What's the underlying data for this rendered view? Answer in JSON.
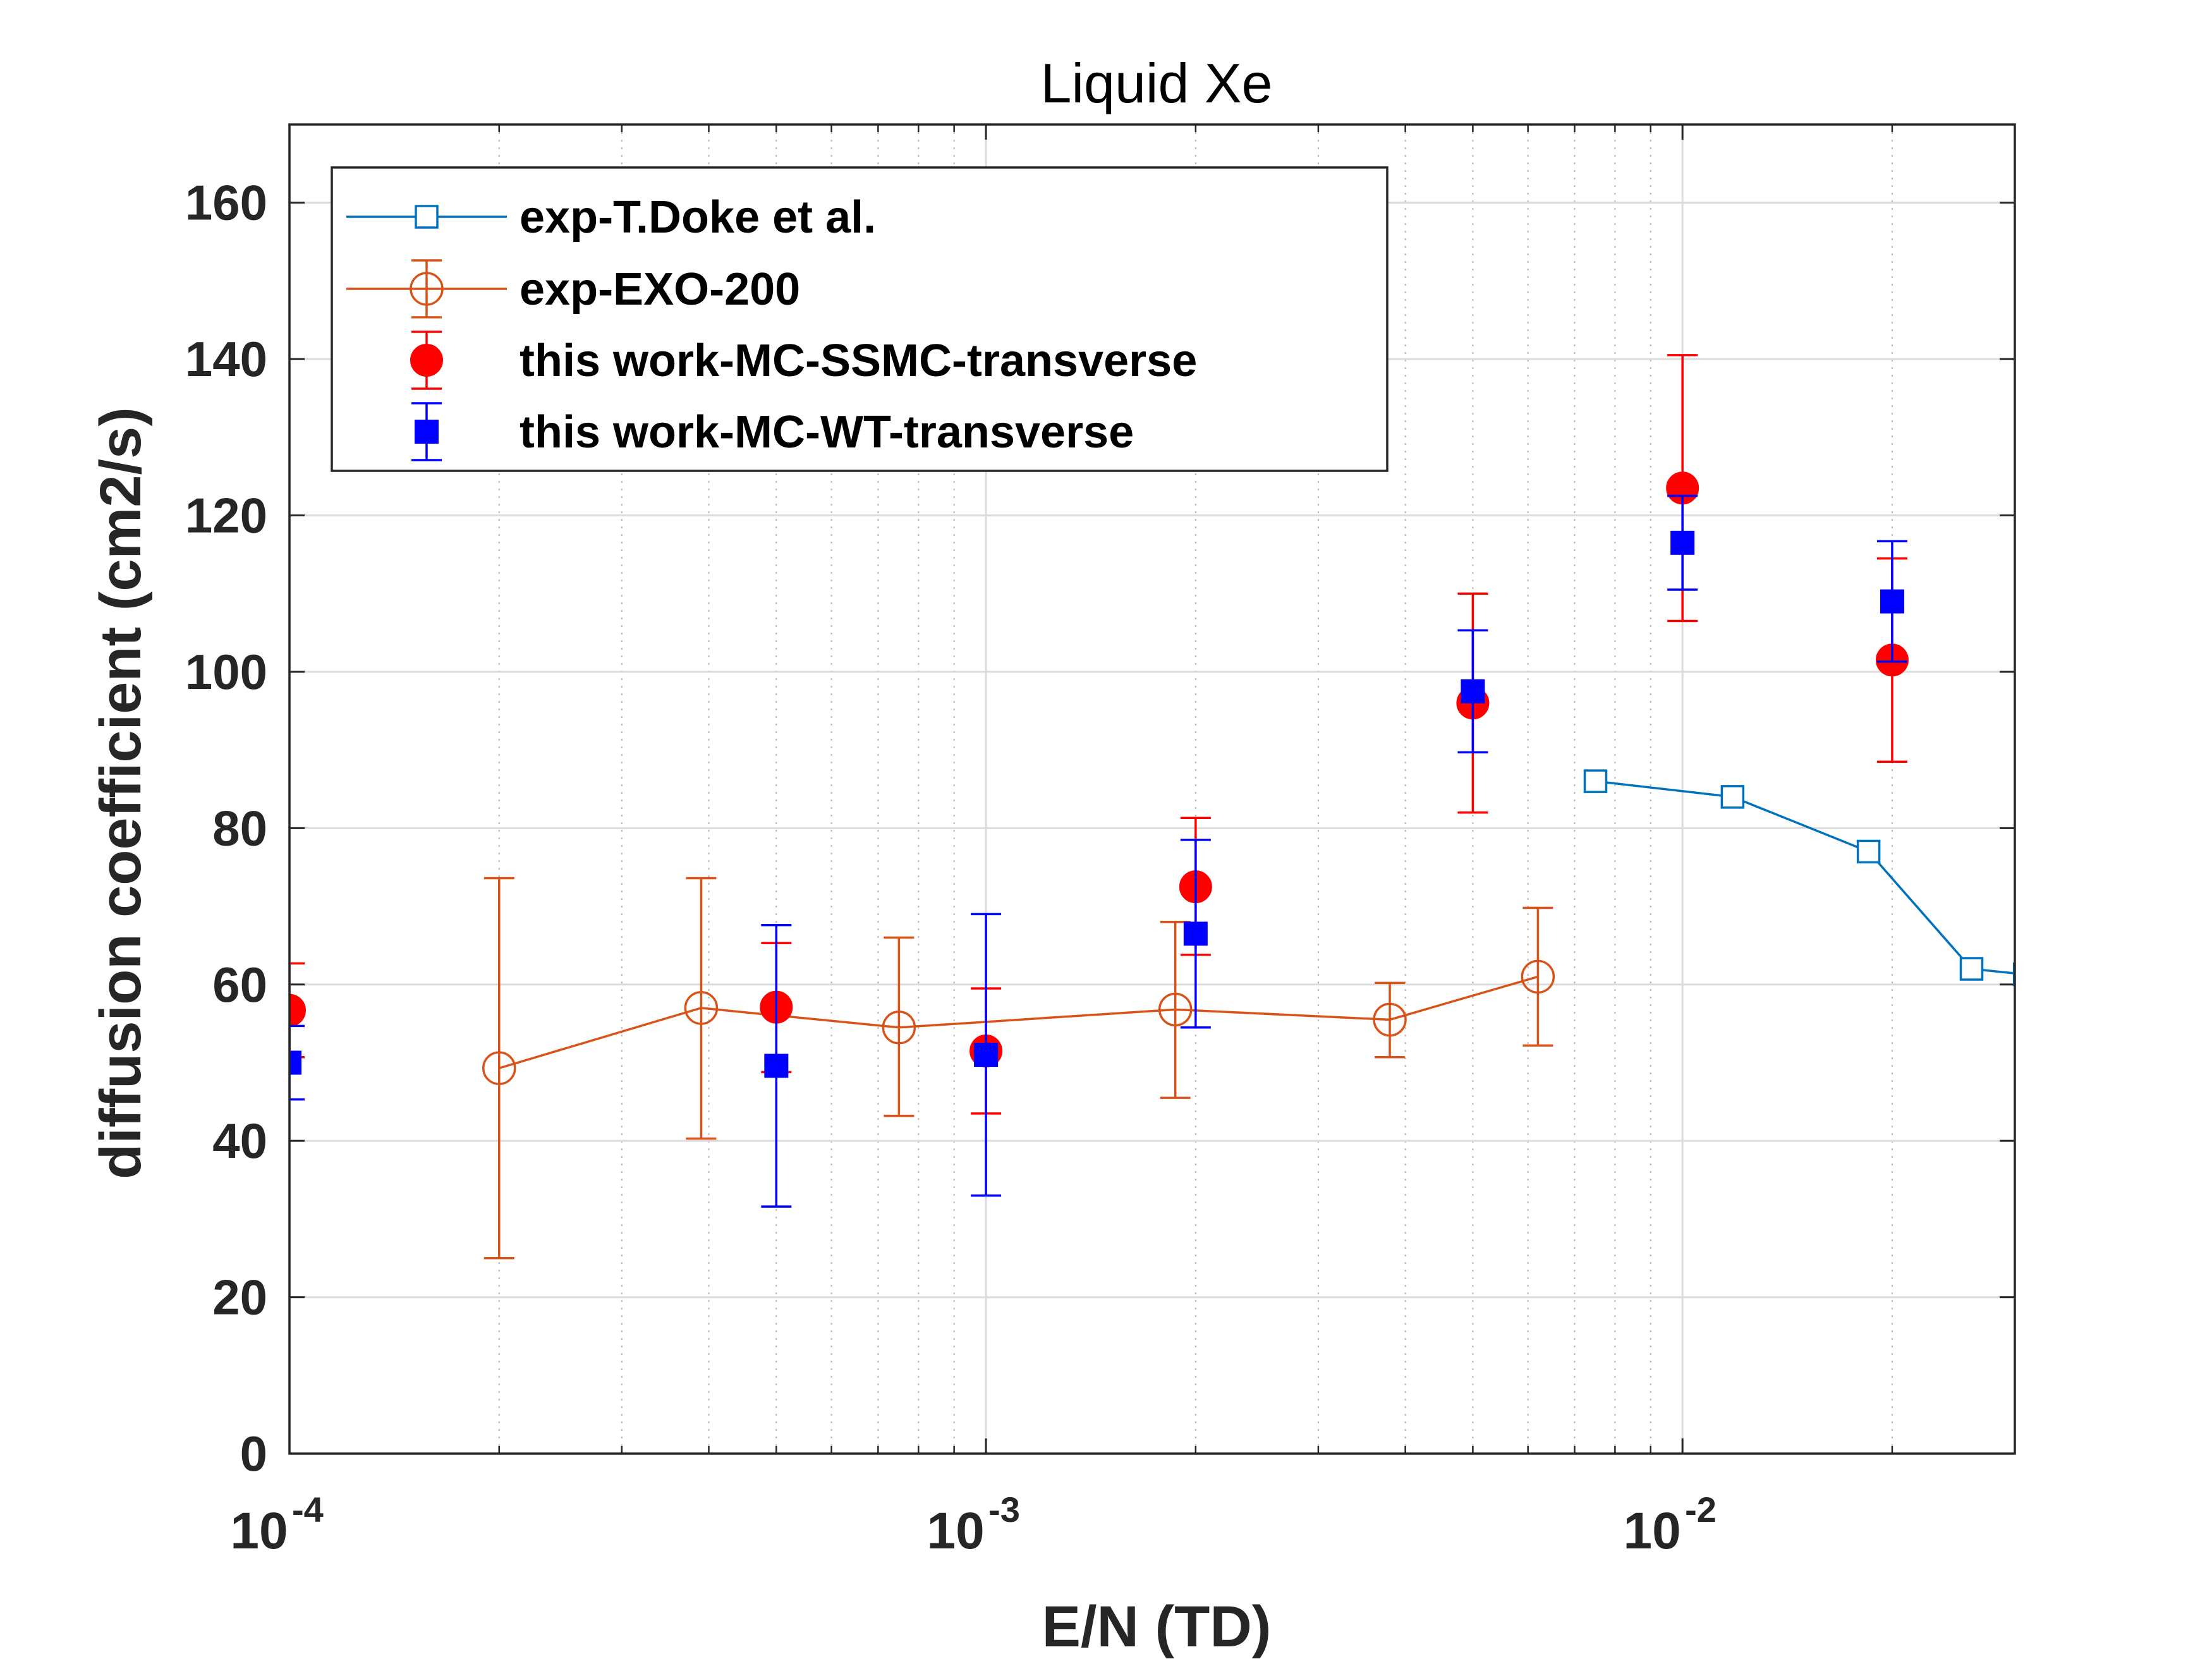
{
  "chart_data": {
    "type": "scatter",
    "title": "Liquid Xe",
    "xlabel": "E/N (TD)",
    "ylabel": "diffusion coefficient (cm2/s)",
    "xscale": "log",
    "xlim": [
      0.0001,
      0.03
    ],
    "ylim": [
      0,
      170
    ],
    "grid": true,
    "legend_position": "top-left",
    "yticks": [
      0,
      20,
      40,
      60,
      80,
      100,
      120,
      140,
      160
    ],
    "ytick_labels": [
      "0",
      "20",
      "40",
      "60",
      "80",
      "100",
      "120",
      "140",
      "160"
    ],
    "xticks": [
      {
        "value": 0.0001,
        "base": "10",
        "exp": "-4"
      },
      {
        "value": 0.001,
        "base": "10",
        "exp": "-3"
      },
      {
        "value": 0.01,
        "base": "10",
        "exp": "-2"
      }
    ],
    "series": [
      {
        "name": "exp-T.Doke et al.",
        "color": "#0072BD",
        "marker": "square-open",
        "line": true,
        "points": [
          {
            "x": 0.0075,
            "y": 86
          },
          {
            "x": 0.0118,
            "y": 84
          },
          {
            "x": 0.0185,
            "y": 77
          },
          {
            "x": 0.026,
            "y": 62
          },
          {
            "x": 0.031,
            "y": 61.3
          }
        ]
      },
      {
        "name": "exp-EXO-200",
        "color": "#D95319",
        "marker": "circle-open",
        "line": true,
        "points": [
          {
            "x": 0.0002,
            "y": 49.3,
            "lo": 25,
            "hi": 73.6
          },
          {
            "x": 0.00039,
            "y": 57,
            "lo": 40.3,
            "hi": 73.6
          },
          {
            "x": 0.00075,
            "y": 54.5,
            "lo": 43.2,
            "hi": 66
          },
          {
            "x": 0.00187,
            "y": 56.8,
            "lo": 45.5,
            "hi": 68
          },
          {
            "x": 0.0038,
            "y": 55.5,
            "lo": 50.7,
            "hi": 60.2
          },
          {
            "x": 0.0062,
            "y": 61,
            "lo": 52.2,
            "hi": 69.8
          }
        ]
      },
      {
        "name": "this work-MC-SSMC-transverse",
        "color": "#FF0000",
        "marker": "circle-filled",
        "line": false,
        "points": [
          {
            "x": 0.0001,
            "y": 56.7,
            "lo": 50.7,
            "hi": 62.7
          },
          {
            "x": 0.0005,
            "y": 57.1,
            "lo": 48.8,
            "hi": 65.3
          },
          {
            "x": 0.001,
            "y": 51.5,
            "lo": 43.5,
            "hi": 59.5
          },
          {
            "x": 0.002,
            "y": 72.5,
            "lo": 63.8,
            "hi": 81.3
          },
          {
            "x": 0.005,
            "y": 96,
            "lo": 82,
            "hi": 110
          },
          {
            "x": 0.01,
            "y": 123.5,
            "lo": 106.5,
            "hi": 140.5
          },
          {
            "x": 0.02,
            "y": 101.5,
            "lo": 88.5,
            "hi": 114.5
          }
        ]
      },
      {
        "name": "this work-MC-WT-transverse",
        "color": "#0000FF",
        "marker": "square-filled",
        "line": false,
        "points": [
          {
            "x": 0.0001,
            "y": 50,
            "lo": 45.3,
            "hi": 54.7
          },
          {
            "x": 0.0005,
            "y": 49.6,
            "lo": 31.6,
            "hi": 67.6
          },
          {
            "x": 0.001,
            "y": 51,
            "lo": 33,
            "hi": 69
          },
          {
            "x": 0.002,
            "y": 66.5,
            "lo": 54.5,
            "hi": 78.5
          },
          {
            "x": 0.005,
            "y": 97.5,
            "lo": 89.7,
            "hi": 105.3
          },
          {
            "x": 0.01,
            "y": 116.5,
            "lo": 110.5,
            "hi": 122.5
          },
          {
            "x": 0.02,
            "y": 109,
            "lo": 101.3,
            "hi": 116.7
          }
        ]
      }
    ]
  }
}
